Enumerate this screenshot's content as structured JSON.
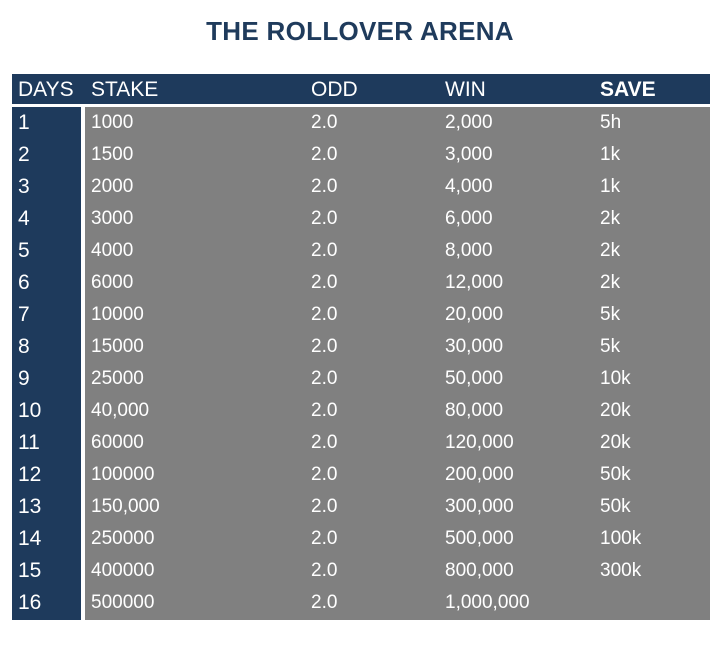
{
  "title": "THE ROLLOVER ARENA",
  "headers": {
    "days": "DAYS",
    "stake": "STAKE",
    "odd": "ODD",
    "win": "WIN",
    "save": "SAVE"
  },
  "rows": [
    {
      "day": "1",
      "stake": "1000",
      "odd": "2.0",
      "win": "2,000",
      "save": "5h"
    },
    {
      "day": "2",
      "stake": "1500",
      "odd": "2.0",
      "win": "3,000",
      "save": "1k"
    },
    {
      "day": "3",
      "stake": "2000",
      "odd": "2.0",
      "win": "4,000",
      "save": "1k"
    },
    {
      "day": "4",
      "stake": "3000",
      "odd": "2.0",
      "win": "6,000",
      "save": "2k"
    },
    {
      "day": "5",
      "stake": "4000",
      "odd": "2.0",
      "win": "8,000",
      "save": "2k"
    },
    {
      "day": "6",
      "stake": "6000",
      "odd": "2.0",
      "win": "12,000",
      "save": "2k"
    },
    {
      "day": "7",
      "stake": "10000",
      "odd": "2.0",
      "win": "20,000",
      "save": "5k"
    },
    {
      "day": "8",
      "stake": "15000",
      "odd": "2.0",
      "win": "30,000",
      "save": "5k"
    },
    {
      "day": "9",
      "stake": "25000",
      "odd": "2.0",
      "win": "50,000",
      "save": "10k"
    },
    {
      "day": "10",
      "stake": "40,000",
      "odd": "2.0",
      "win": "80,000",
      "save": "20k"
    },
    {
      "day": "11",
      "stake": "60000",
      "odd": "2.0",
      "win": "120,000",
      "save": "20k"
    },
    {
      "day": "12",
      "stake": "100000",
      "odd": "2.0",
      "win": "200,000",
      "save": "50k"
    },
    {
      "day": "13",
      "stake": "150,000",
      "odd": "2.0",
      "win": "300,000",
      "save": "50k"
    },
    {
      "day": "14",
      "stake": "250000",
      "odd": "2.0",
      "win": "500,000",
      "save": "100k"
    },
    {
      "day": "15",
      "stake": "400000",
      "odd": "2.0",
      "win": "800,000",
      "save": "300k"
    },
    {
      "day": "16",
      "stake": "500000",
      "odd": "2.0",
      "win": "1,000,000",
      "save": ""
    }
  ],
  "colors": {
    "header_bg": "#1e3a5c",
    "title": "#1f3b5c",
    "cell_bg": "#808080",
    "text": "#ffffff"
  }
}
